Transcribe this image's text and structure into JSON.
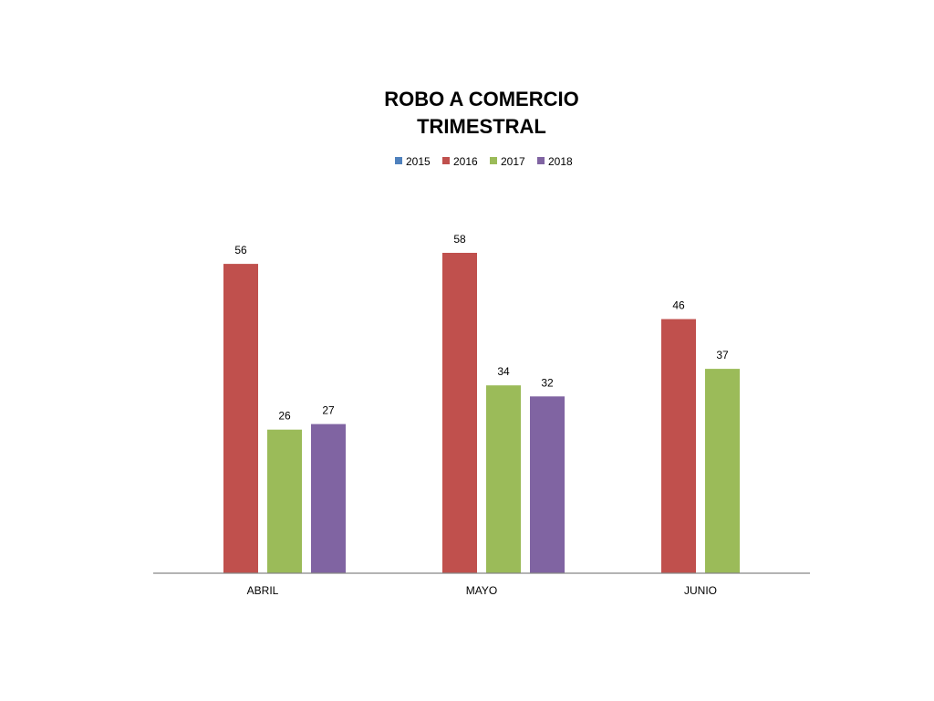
{
  "chart_data": {
    "type": "bar",
    "title": [
      "ROBO A COMERCIO",
      "TRIMESTRAL"
    ],
    "categories": [
      "ABRIL",
      "MAYO",
      "JUNIO"
    ],
    "series": [
      {
        "name": "2015",
        "color": "#4f81bd",
        "values": [
          null,
          null,
          null
        ]
      },
      {
        "name": "2016",
        "color": "#c0504d",
        "values": [
          56,
          58,
          46
        ]
      },
      {
        "name": "2017",
        "color": "#9bbb59",
        "values": [
          26,
          34,
          37
        ]
      },
      {
        "name": "2018",
        "color": "#8064a2",
        "values": [
          27,
          32,
          null
        ]
      }
    ],
    "ylim": [
      0,
      58
    ],
    "grid": false,
    "legend_position": "top"
  }
}
